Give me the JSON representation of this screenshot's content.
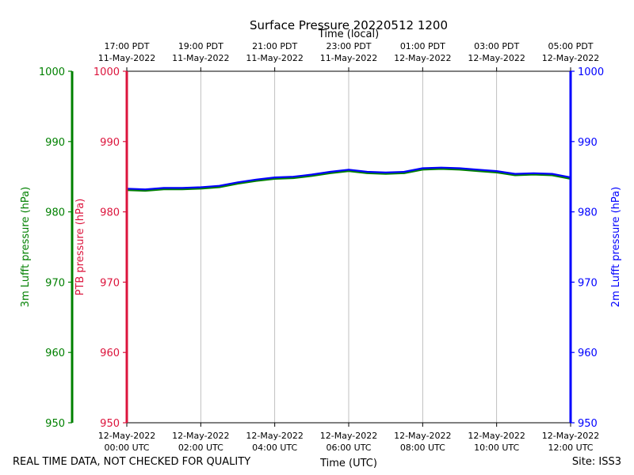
{
  "chart_data": {
    "type": "line",
    "title": "Surface Pressure 20220512 1200",
    "xlabel_bottom": "Time (UTC)",
    "xlabel_top": "Time (local)",
    "x_range_hours": [
      0,
      12
    ],
    "bottom_ticks": [
      {
        "hour": 0,
        "date": "12-May-2022",
        "time": "00:00 UTC"
      },
      {
        "hour": 2,
        "date": "12-May-2022",
        "time": "02:00 UTC"
      },
      {
        "hour": 4,
        "date": "12-May-2022",
        "time": "04:00 UTC"
      },
      {
        "hour": 6,
        "date": "12-May-2022",
        "time": "06:00 UTC"
      },
      {
        "hour": 8,
        "date": "12-May-2022",
        "time": "08:00 UTC"
      },
      {
        "hour": 10,
        "date": "12-May-2022",
        "time": "10:00 UTC"
      },
      {
        "hour": 12,
        "date": "12-May-2022",
        "time": "12:00 UTC"
      }
    ],
    "top_ticks": [
      {
        "hour": 0,
        "time": "17:00 PDT",
        "date": "11-May-2022"
      },
      {
        "hour": 2,
        "time": "19:00 PDT",
        "date": "11-May-2022"
      },
      {
        "hour": 4,
        "time": "21:00 PDT",
        "date": "11-May-2022"
      },
      {
        "hour": 6,
        "time": "23:00 PDT",
        "date": "11-May-2022"
      },
      {
        "hour": 8,
        "time": "01:00 PDT",
        "date": "12-May-2022"
      },
      {
        "hour": 10,
        "time": "03:00 PDT",
        "date": "12-May-2022"
      },
      {
        "hour": 12,
        "time": "05:00 PDT",
        "date": "12-May-2022"
      }
    ],
    "ylim": [
      950,
      1000
    ],
    "yticks": [
      "950",
      "960",
      "970",
      "980",
      "990",
      "1000"
    ],
    "y_axes": [
      {
        "id": "lufft3m",
        "label": "3m Lufft pressure (hPa)",
        "color": "#008000"
      },
      {
        "id": "ptb",
        "label": "PTB pressure (hPa)",
        "color": "#dc143c"
      },
      {
        "id": "lufft2m",
        "label": "2m Lufft pressure (hPa)",
        "color": "#0000ff"
      }
    ],
    "series": [
      {
        "name": "PTB pressure",
        "color": "#dc143c",
        "x": [
          0,
          0.5,
          1,
          1.5,
          2,
          2.5,
          3,
          3.5,
          4,
          4.5,
          5,
          5.5,
          6,
          6.5,
          7,
          7.5,
          8,
          8.5,
          9,
          9.5,
          10,
          10.5,
          11,
          11.5,
          12
        ],
        "y": [
          983.2,
          983.1,
          983.3,
          983.3,
          983.4,
          983.6,
          984.1,
          984.5,
          984.8,
          984.9,
          985.2,
          985.6,
          985.9,
          985.6,
          985.5,
          985.6,
          986.1,
          986.2,
          986.1,
          985.9,
          985.7,
          985.3,
          985.4,
          985.3,
          984.8
        ]
      },
      {
        "name": "3m Lufft pressure",
        "color": "#008000",
        "x": [
          0,
          0.5,
          1,
          1.5,
          2,
          2.5,
          3,
          3.5,
          4,
          4.5,
          5,
          5.5,
          6,
          6.5,
          7,
          7.5,
          8,
          8.5,
          9,
          9.5,
          10,
          10.5,
          11,
          11.5,
          12
        ],
        "y": [
          983.1,
          983.0,
          983.2,
          983.2,
          983.3,
          983.5,
          984.0,
          984.4,
          984.7,
          984.8,
          985.1,
          985.5,
          985.8,
          985.5,
          985.4,
          985.5,
          986.0,
          986.1,
          986.0,
          985.8,
          985.6,
          985.2,
          985.3,
          985.2,
          984.7
        ]
      },
      {
        "name": "2m Lufft pressure",
        "color": "#0000ff",
        "x": [
          0,
          0.5,
          1,
          1.5,
          2,
          2.5,
          3,
          3.5,
          4,
          4.5,
          5,
          5.5,
          6,
          6.5,
          7,
          7.5,
          8,
          8.5,
          9,
          9.5,
          10,
          10.5,
          11,
          11.5,
          12
        ],
        "y": [
          983.3,
          983.2,
          983.4,
          983.4,
          983.5,
          983.7,
          984.2,
          984.6,
          984.9,
          985.0,
          985.3,
          985.7,
          986.0,
          985.7,
          985.6,
          985.7,
          986.2,
          986.3,
          986.2,
          986.0,
          985.8,
          985.4,
          985.5,
          985.4,
          984.9
        ]
      }
    ]
  },
  "footer": {
    "quality_note": "REAL TIME DATA, NOT CHECKED FOR QUALITY",
    "site": "Site: ISS3"
  }
}
